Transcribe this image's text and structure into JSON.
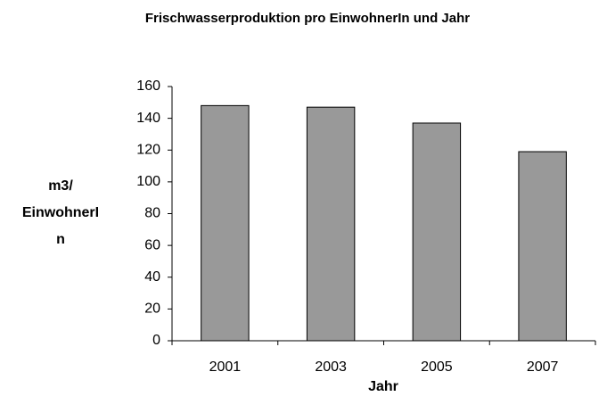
{
  "chart_data": {
    "type": "bar",
    "title": "Frischwasserproduktion pro EinwohnerIn und Jahr",
    "x_label": "Jahr",
    "y_label_lines": [
      "m3/",
      "EinwohnerI",
      "n"
    ],
    "categories": [
      "2001",
      "2003",
      "2005",
      "2007"
    ],
    "values": [
      148,
      147,
      137,
      119
    ],
    "color": "#999999",
    "ylim": [
      0,
      160
    ],
    "yticks": [
      0,
      20,
      40,
      60,
      80,
      100,
      120,
      140,
      160
    ],
    "grid": false
  }
}
